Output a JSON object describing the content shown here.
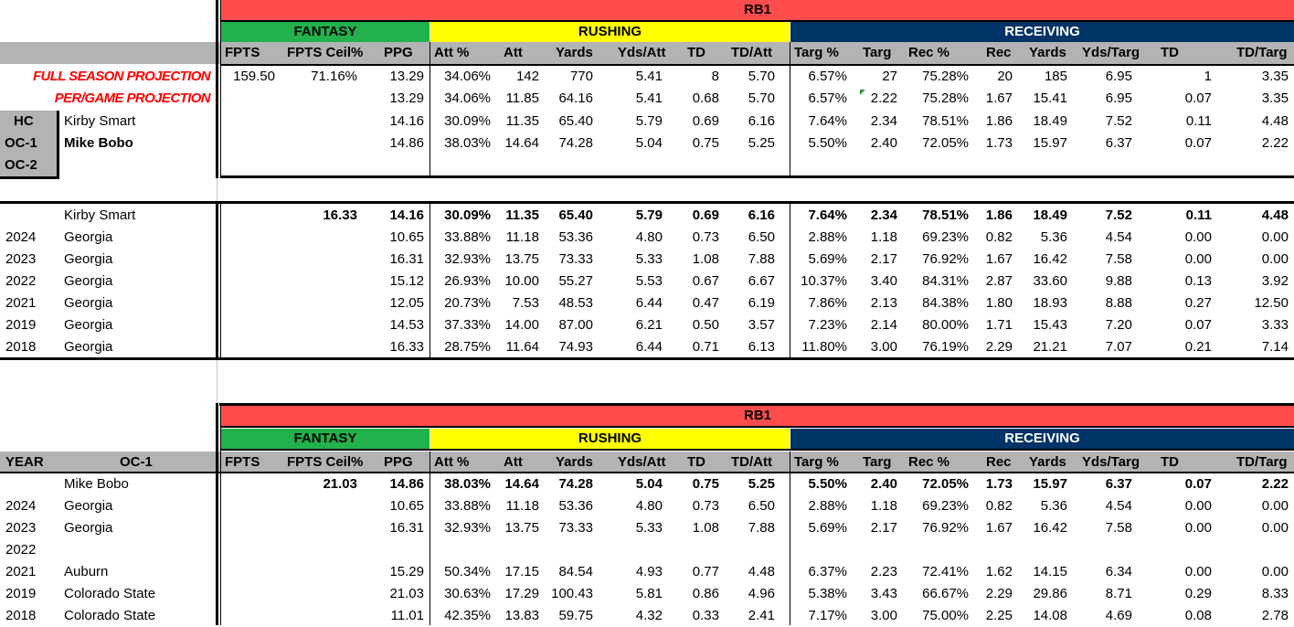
{
  "colors": {
    "rb1": "#ff4d4d",
    "fantasy": "#22b14c",
    "rushing": "#ffff00",
    "receiving": "#003366",
    "grey": "#b3b3b3",
    "proj": "#ff0000"
  },
  "group_labels": {
    "rb1": "RB1",
    "fantasy": "FANTASY",
    "rushing": "RUSHING",
    "receiving": "RECEIVING"
  },
  "columns": [
    "FPTS",
    "FPTS Ceil%",
    "PPG",
    "Att %",
    "Att",
    "Yards",
    "Yds/Att",
    "TD",
    "TD/Att",
    "Targ %",
    "Targ",
    "Rec %",
    "Rec",
    "Yards",
    "Yds/Targ",
    "TD",
    "TD/Targ"
  ],
  "projection": {
    "full_label": "FULL SEASON PROJECTION",
    "pergame_label": "PER/GAME PROJECTION",
    "full": [
      "159.50",
      "71.16%",
      "13.29",
      "34.06%",
      "142",
      "770",
      "5.41",
      "8",
      "5.70",
      "6.57%",
      "27",
      "75.28%",
      "20",
      "185",
      "6.95",
      "1",
      "3.35"
    ],
    "pergame": [
      "",
      "",
      "13.29",
      "34.06%",
      "11.85",
      "64.16",
      "5.41",
      "0.68",
      "5.70",
      "6.57%",
      "2.22",
      "75.28%",
      "1.67",
      "15.41",
      "6.95",
      "0.07",
      "3.35"
    ]
  },
  "staff": [
    {
      "role": "HC",
      "name": "Kirby Smart",
      "stats": [
        "",
        "",
        "14.16",
        "30.09%",
        "11.35",
        "65.40",
        "5.79",
        "0.69",
        "6.16",
        "7.64%",
        "2.34",
        "78.51%",
        "1.86",
        "18.49",
        "7.52",
        "0.11",
        "4.48"
      ]
    },
    {
      "role": "OC-1",
      "name": "Mike Bobo",
      "stats": [
        "",
        "",
        "14.86",
        "38.03%",
        "14.64",
        "74.28",
        "5.04",
        "0.75",
        "5.25",
        "5.50%",
        "2.40",
        "72.05%",
        "1.73",
        "15.97",
        "6.37",
        "0.07",
        "2.22"
      ]
    },
    {
      "role": "OC-2",
      "name": "",
      "stats": []
    }
  ],
  "hc_table": {
    "summary": {
      "name": "Kirby Smart",
      "stats": [
        "",
        "16.33",
        "14.16",
        "30.09%",
        "11.35",
        "65.40",
        "5.79",
        "0.69",
        "6.16",
        "7.64%",
        "2.34",
        "78.51%",
        "1.86",
        "18.49",
        "7.52",
        "0.11",
        "4.48"
      ]
    },
    "rows": [
      {
        "year": "2024",
        "team": "Georgia",
        "stats": [
          "",
          "",
          "10.65",
          "33.88%",
          "11.18",
          "53.36",
          "4.80",
          "0.73",
          "6.50",
          "2.88%",
          "1.18",
          "69.23%",
          "0.82",
          "5.36",
          "4.54",
          "0.00",
          "0.00"
        ]
      },
      {
        "year": "2023",
        "team": "Georgia",
        "stats": [
          "",
          "",
          "16.31",
          "32.93%",
          "13.75",
          "73.33",
          "5.33",
          "1.08",
          "7.88",
          "5.69%",
          "2.17",
          "76.92%",
          "1.67",
          "16.42",
          "7.58",
          "0.00",
          "0.00"
        ]
      },
      {
        "year": "2022",
        "team": "Georgia",
        "stats": [
          "",
          "",
          "15.12",
          "26.93%",
          "10.00",
          "55.27",
          "5.53",
          "0.67",
          "6.67",
          "10.37%",
          "3.40",
          "84.31%",
          "2.87",
          "33.60",
          "9.88",
          "0.13",
          "3.92"
        ]
      },
      {
        "year": "2021",
        "team": "Georgia",
        "stats": [
          "",
          "",
          "12.05",
          "20.73%",
          "7.53",
          "48.53",
          "6.44",
          "0.47",
          "6.19",
          "7.86%",
          "2.13",
          "84.38%",
          "1.80",
          "18.93",
          "8.88",
          "0.27",
          "12.50"
        ]
      },
      {
        "year": "2019",
        "team": "Georgia",
        "stats": [
          "",
          "",
          "14.53",
          "37.33%",
          "14.00",
          "87.00",
          "6.21",
          "0.50",
          "3.57",
          "7.23%",
          "2.14",
          "80.00%",
          "1.71",
          "15.43",
          "7.20",
          "0.07",
          "3.33"
        ]
      },
      {
        "year": "2018",
        "team": "Georgia",
        "stats": [
          "",
          "",
          "16.33",
          "28.75%",
          "11.64",
          "74.93",
          "6.44",
          "0.71",
          "6.13",
          "11.80%",
          "3.00",
          "76.19%",
          "2.29",
          "21.21",
          "7.07",
          "0.21",
          "7.14"
        ]
      }
    ]
  },
  "oc_table": {
    "year_header": "YEAR",
    "role_header": "OC-1",
    "summary": {
      "name": "Mike Bobo",
      "stats": [
        "",
        "21.03",
        "14.86",
        "38.03%",
        "14.64",
        "74.28",
        "5.04",
        "0.75",
        "5.25",
        "5.50%",
        "2.40",
        "72.05%",
        "1.73",
        "15.97",
        "6.37",
        "0.07",
        "2.22"
      ]
    },
    "rows": [
      {
        "year": "2024",
        "team": "Georgia",
        "stats": [
          "",
          "",
          "10.65",
          "33.88%",
          "11.18",
          "53.36",
          "4.80",
          "0.73",
          "6.50",
          "2.88%",
          "1.18",
          "69.23%",
          "0.82",
          "5.36",
          "4.54",
          "0.00",
          "0.00"
        ]
      },
      {
        "year": "2023",
        "team": "Georgia",
        "stats": [
          "",
          "",
          "16.31",
          "32.93%",
          "13.75",
          "73.33",
          "5.33",
          "1.08",
          "7.88",
          "5.69%",
          "2.17",
          "76.92%",
          "1.67",
          "16.42",
          "7.58",
          "0.00",
          "0.00"
        ]
      },
      {
        "year": "2022",
        "team": "",
        "stats": []
      },
      {
        "year": "2021",
        "team": "Auburn",
        "stats": [
          "",
          "",
          "15.29",
          "50.34%",
          "17.15",
          "84.54",
          "4.93",
          "0.77",
          "4.48",
          "6.37%",
          "2.23",
          "72.41%",
          "1.62",
          "14.15",
          "6.34",
          "0.00",
          "0.00"
        ]
      },
      {
        "year": "2019",
        "team": "Colorado State",
        "stats": [
          "",
          "",
          "21.03",
          "30.63%",
          "17.29",
          "100.43",
          "5.81",
          "0.86",
          "4.96",
          "5.38%",
          "3.43",
          "66.67%",
          "2.29",
          "29.86",
          "8.71",
          "0.29",
          "8.33"
        ]
      },
      {
        "year": "2018",
        "team": "Colorado State",
        "stats": [
          "",
          "",
          "11.01",
          "42.35%",
          "13.83",
          "59.75",
          "4.32",
          "0.33",
          "2.41",
          "7.17%",
          "3.00",
          "75.00%",
          "2.25",
          "14.08",
          "4.69",
          "0.08",
          "2.78"
        ]
      }
    ]
  }
}
